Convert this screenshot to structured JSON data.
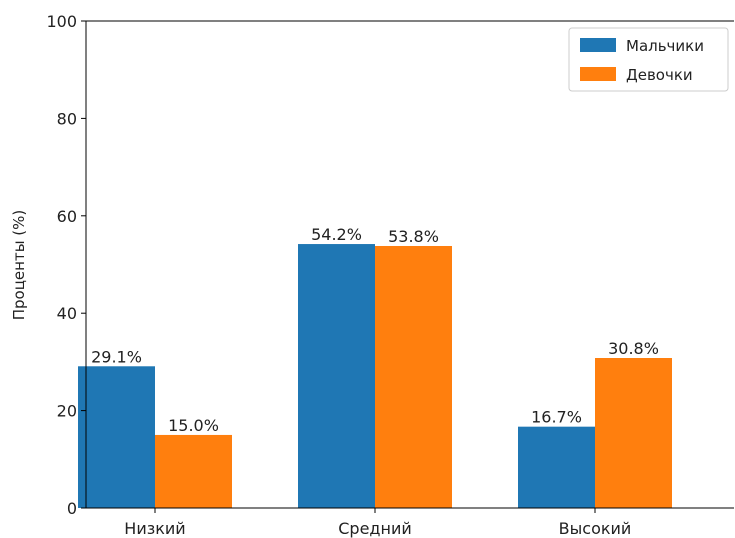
{
  "chart_data": {
    "type": "bar",
    "categories": [
      "Низкий",
      "Средний",
      "Высокий"
    ],
    "series": [
      {
        "name": "Мальчики",
        "values": [
          29.1,
          54.2,
          16.7
        ],
        "labels": [
          "29.1%",
          "54.2%",
          "16.7%"
        ],
        "color": "#1f77b4"
      },
      {
        "name": "Девочки",
        "values": [
          15.0,
          53.8,
          30.8
        ],
        "labels": [
          "15.0%",
          "53.8%",
          "30.8%"
        ],
        "color": "#ff7f0e"
      }
    ],
    "title": "",
    "xlabel": "",
    "ylabel": "Проценты (%)",
    "ylim": [
      0,
      100
    ],
    "yticks": [
      "0",
      "20",
      "40",
      "60",
      "80",
      "100"
    ],
    "legend_position": "top-right",
    "grid": false
  }
}
